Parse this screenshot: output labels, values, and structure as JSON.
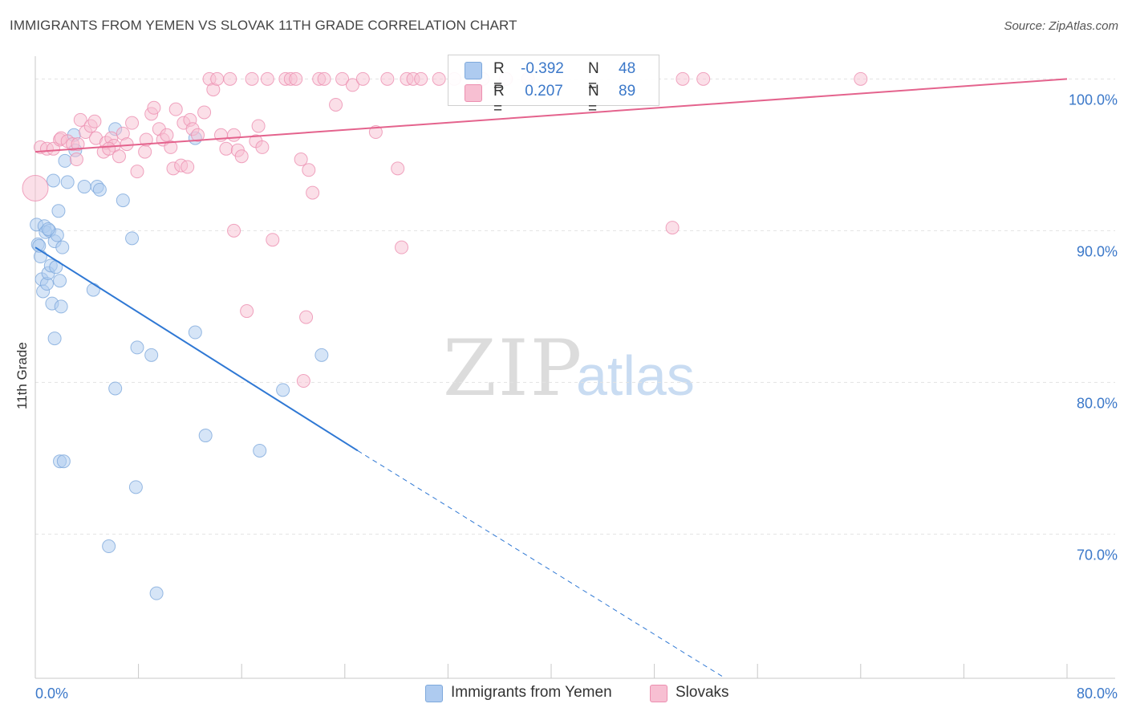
{
  "title": "IMMIGRANTS FROM YEMEN VS SLOVAK 11TH GRADE CORRELATION CHART",
  "source": "Source: ZipAtlas.com",
  "watermark": {
    "zip": "ZIP",
    "atlas": "atlas"
  },
  "legend": {
    "rows": [
      {
        "r_label": "R =",
        "r_value": "-0.392",
        "n_label": "N =",
        "n_value": "48"
      },
      {
        "r_label": "R =",
        "r_value": " 0.207",
        "n_label": "N =",
        "n_value": "89"
      }
    ]
  },
  "colors": {
    "blue_fill": "#aecbf0",
    "blue_stroke": "#7ea9dc",
    "blue_line": "#2f78d4",
    "pink_fill": "#f7bfd2",
    "pink_stroke": "#ec8fb0",
    "pink_line": "#e4638d",
    "tick_label": "#3b78c9",
    "grid": "#e3e3e3"
  },
  "chart_data": {
    "type": "scatter",
    "title": "IMMIGRANTS FROM YEMEN VS SLOVAK 11TH GRADE CORRELATION CHART",
    "xlabel": "",
    "ylabel": "11th Grade",
    "xlim": [
      0,
      80
    ],
    "ylim": [
      60.5,
      101.5
    ],
    "x_tick_labels": [
      "0.0%",
      "80.0%"
    ],
    "y_ticks": [
      70,
      80,
      90,
      100
    ],
    "y_tick_labels": [
      "70.0%",
      "80.0%",
      "90.0%",
      "100.0%"
    ],
    "grid": true,
    "legend_position": "bottom",
    "series": [
      {
        "name": "Immigrants from Yemen",
        "color": "#aecbf0",
        "trend": {
          "x1": 0.0,
          "y1": 88.9,
          "x2": 25.0,
          "y2": 75.5,
          "dashed_to_x": 53.5,
          "dashed_to_y": 60.5
        },
        "points": [
          [
            0.1,
            90.4
          ],
          [
            0.2,
            89.1
          ],
          [
            0.4,
            88.3
          ],
          [
            0.5,
            86.8
          ],
          [
            0.6,
            86.0
          ],
          [
            0.7,
            90.3
          ],
          [
            0.8,
            89.9
          ],
          [
            0.9,
            86.5
          ],
          [
            1.0,
            87.2
          ],
          [
            1.1,
            90.0
          ],
          [
            1.2,
            87.7
          ],
          [
            1.3,
            85.2
          ],
          [
            1.4,
            93.3
          ],
          [
            1.5,
            89.3
          ],
          [
            1.6,
            87.6
          ],
          [
            1.7,
            89.7
          ],
          [
            1.8,
            91.3
          ],
          [
            1.9,
            86.7
          ],
          [
            2.0,
            85.0
          ],
          [
            2.1,
            88.9
          ],
          [
            2.3,
            94.6
          ],
          [
            1.5,
            82.9
          ],
          [
            1.9,
            74.8
          ],
          [
            2.2,
            74.8
          ],
          [
            3.0,
            96.3
          ],
          [
            3.1,
            95.3
          ],
          [
            3.8,
            92.9
          ],
          [
            4.5,
            86.1
          ],
          [
            4.8,
            92.9
          ],
          [
            5.0,
            92.7
          ],
          [
            6.2,
            96.7
          ],
          [
            6.8,
            92.0
          ],
          [
            7.5,
            89.5
          ],
          [
            6.2,
            79.6
          ],
          [
            7.9,
            82.3
          ],
          [
            7.8,
            73.1
          ],
          [
            9.0,
            81.8
          ],
          [
            5.7,
            69.2
          ],
          [
            9.4,
            66.1
          ],
          [
            12.4,
            96.1
          ],
          [
            12.4,
            83.3
          ],
          [
            13.2,
            76.5
          ],
          [
            17.4,
            75.5
          ],
          [
            19.2,
            79.5
          ],
          [
            22.2,
            81.8
          ],
          [
            1.0,
            90.1
          ],
          [
            0.3,
            89.0
          ],
          [
            2.5,
            93.2
          ]
        ]
      },
      {
        "name": "Slovaks",
        "color": "#f7bfd2",
        "trend": {
          "x1": 0.0,
          "y1": 95.2,
          "x2": 80.0,
          "y2": 100.0
        },
        "points": [
          [
            0.0,
            92.8
          ],
          [
            0.4,
            95.5
          ],
          [
            0.9,
            95.4
          ],
          [
            1.4,
            95.4
          ],
          [
            1.9,
            96.0
          ],
          [
            2.0,
            96.1
          ],
          [
            2.5,
            95.9
          ],
          [
            2.9,
            95.7
          ],
          [
            3.2,
            94.7
          ],
          [
            3.5,
            97.3
          ],
          [
            3.9,
            96.5
          ],
          [
            4.3,
            96.9
          ],
          [
            4.6,
            97.2
          ],
          [
            4.7,
            96.1
          ],
          [
            5.3,
            95.2
          ],
          [
            5.5,
            95.8
          ],
          [
            5.9,
            96.1
          ],
          [
            6.1,
            95.6
          ],
          [
            6.5,
            94.9
          ],
          [
            6.8,
            96.4
          ],
          [
            7.1,
            95.7
          ],
          [
            7.5,
            97.1
          ],
          [
            7.9,
            93.9
          ],
          [
            8.5,
            95.2
          ],
          [
            8.6,
            96.0
          ],
          [
            9.0,
            97.7
          ],
          [
            9.2,
            98.1
          ],
          [
            9.6,
            96.7
          ],
          [
            9.9,
            96.0
          ],
          [
            10.2,
            96.3
          ],
          [
            10.5,
            95.5
          ],
          [
            10.7,
            94.1
          ],
          [
            10.9,
            98.0
          ],
          [
            11.3,
            94.3
          ],
          [
            11.5,
            97.1
          ],
          [
            11.8,
            94.2
          ],
          [
            12.0,
            97.3
          ],
          [
            12.2,
            96.7
          ],
          [
            12.6,
            96.3
          ],
          [
            13.1,
            97.8
          ],
          [
            13.5,
            100.0
          ],
          [
            13.8,
            99.3
          ],
          [
            14.1,
            100.0
          ],
          [
            14.4,
            96.3
          ],
          [
            14.8,
            95.4
          ],
          [
            15.1,
            100.0
          ],
          [
            15.4,
            96.3
          ],
          [
            15.7,
            95.3
          ],
          [
            16.0,
            94.9
          ],
          [
            16.4,
            84.7
          ],
          [
            16.8,
            100.0
          ],
          [
            17.1,
            95.9
          ],
          [
            17.3,
            96.9
          ],
          [
            17.6,
            95.5
          ],
          [
            18.0,
            100.0
          ],
          [
            18.4,
            89.4
          ],
          [
            19.4,
            100.0
          ],
          [
            19.8,
            100.0
          ],
          [
            20.2,
            100.0
          ],
          [
            20.6,
            94.7
          ],
          [
            21.2,
            94.0
          ],
          [
            21.5,
            92.5
          ],
          [
            21.0,
            84.3
          ],
          [
            22.0,
            100.0
          ],
          [
            22.4,
            100.0
          ],
          [
            23.3,
            98.3
          ],
          [
            23.8,
            100.0
          ],
          [
            24.6,
            99.6
          ],
          [
            25.4,
            100.0
          ],
          [
            26.4,
            96.5
          ],
          [
            27.3,
            100.0
          ],
          [
            28.1,
            94.1
          ],
          [
            28.4,
            88.9
          ],
          [
            28.8,
            100.0
          ],
          [
            29.3,
            100.0
          ],
          [
            29.9,
            100.0
          ],
          [
            31.3,
            100.0
          ],
          [
            32.5,
            100.0
          ],
          [
            34.7,
            100.0
          ],
          [
            36.5,
            100.0
          ],
          [
            38.2,
            100.0
          ],
          [
            49.4,
            90.2
          ],
          [
            50.2,
            100.0
          ],
          [
            51.8,
            100.0
          ],
          [
            64.0,
            100.0
          ],
          [
            15.4,
            90.0
          ],
          [
            20.8,
            80.1
          ],
          [
            3.3,
            95.7
          ],
          [
            5.7,
            95.4
          ]
        ]
      }
    ]
  }
}
